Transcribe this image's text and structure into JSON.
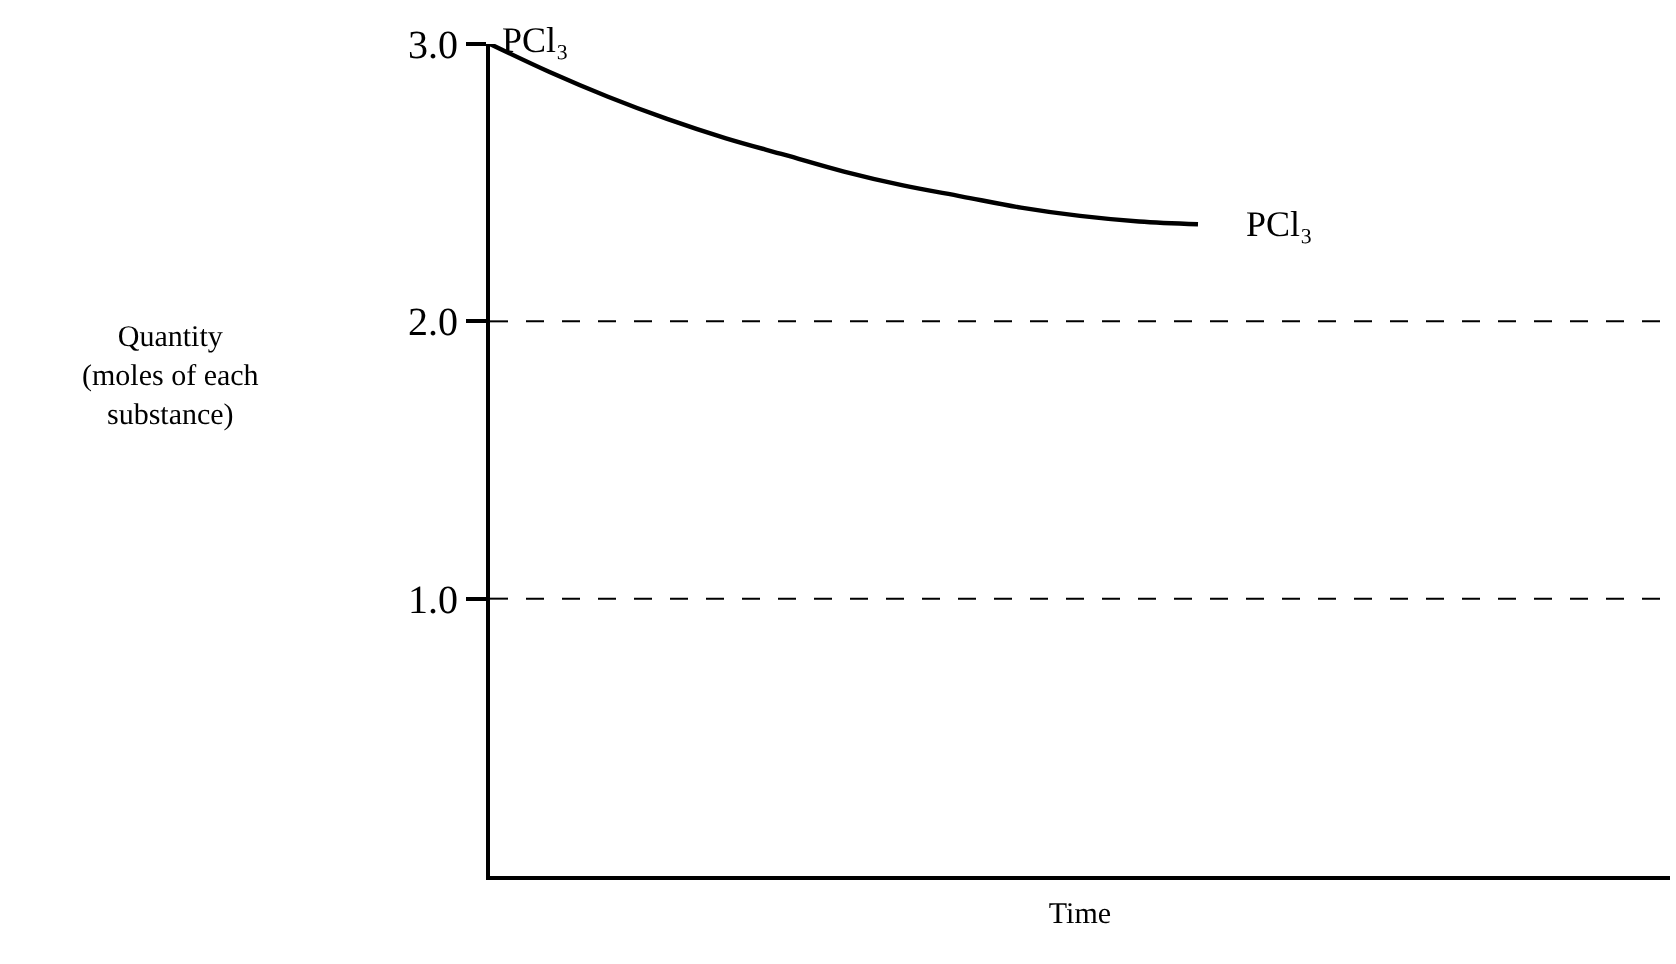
{
  "chart_data": {
    "type": "line",
    "xlabel": "Time",
    "ylabel": "Quantity\n(moles of each\nsubstance)",
    "categories": [
      null,
      null,
      null,
      null,
      null,
      null,
      null,
      null,
      null,
      null,
      null,
      null,
      null,
      null,
      null,
      null,
      null,
      null,
      null,
      null,
      null
    ],
    "series": [
      {
        "color": "#000000",
        "values": [
          3.0,
          2.9,
          2.81,
          2.73,
          2.66,
          2.6,
          2.54,
          2.49,
          2.45,
          2.41,
          2.38,
          2.36,
          2.35,
          null,
          null,
          null,
          null,
          null,
          null,
          null,
          null
        ]
      }
    ],
    "ylim": [
      0,
      3.0
    ],
    "yticks": [
      {
        "value": 1,
        "label": "1.0"
      },
      {
        "value": 2,
        "label": "2.0"
      },
      {
        "value": 3,
        "label": "3.0"
      }
    ],
    "ref_lines": [
      {
        "axis": "y",
        "value": 1,
        "color": "#000000",
        "line_style": "dashed"
      },
      {
        "axis": "y",
        "value": 2,
        "color": "#000000",
        "line_style": "dashed"
      }
    ],
    "annotations": [
      "PCl₃",
      "PCl₃"
    ],
    "tick_labels": "y",
    "marker": "none",
    "line_style": "solid",
    "grid": false
  }
}
